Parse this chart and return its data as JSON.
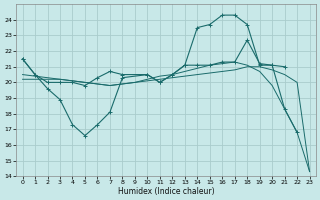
{
  "xlabel": "Humidex (Indice chaleur)",
  "bg_color": "#c8e8e8",
  "grid_color": "#aacccc",
  "line_color": "#1a6b6b",
  "xlim": [
    -0.5,
    23.5
  ],
  "ylim": [
    14,
    25
  ],
  "xticks": [
    0,
    1,
    2,
    3,
    4,
    5,
    6,
    7,
    8,
    9,
    10,
    11,
    12,
    13,
    14,
    15,
    16,
    17,
    18,
    19,
    20,
    21,
    22,
    23
  ],
  "yticks": [
    14,
    15,
    16,
    17,
    18,
    19,
    20,
    21,
    22,
    23,
    24
  ],
  "series": [
    {
      "x": [
        0,
        1,
        2,
        3,
        4,
        5,
        6,
        7,
        8,
        10,
        11,
        12,
        13,
        14,
        15,
        16,
        17,
        18,
        19,
        20,
        21,
        22
      ],
      "y": [
        21.5,
        20.5,
        19.6,
        18.9,
        17.3,
        16.6,
        17.3,
        18.1,
        20.3,
        20.5,
        20.0,
        20.5,
        21.1,
        23.5,
        23.7,
        24.3,
        24.3,
        23.7,
        21.1,
        21.1,
        18.3,
        16.8
      ],
      "marker": true
    },
    {
      "x": [
        0,
        1,
        2,
        3,
        4,
        5,
        6,
        7,
        8,
        10,
        11,
        12,
        13,
        14,
        15,
        16,
        17,
        18,
        19,
        20,
        21
      ],
      "y": [
        21.5,
        20.5,
        20.0,
        20.0,
        20.0,
        19.8,
        20.3,
        20.7,
        20.5,
        20.5,
        20.0,
        20.5,
        21.1,
        21.1,
        21.1,
        21.3,
        21.3,
        22.7,
        21.2,
        21.1,
        21.0
      ],
      "marker": true
    },
    {
      "x": [
        0,
        1,
        2,
        3,
        4,
        5,
        6,
        7,
        8,
        9,
        10,
        11,
        12,
        13,
        14,
        15,
        16,
        17,
        18,
        19,
        20,
        21,
        22,
        23
      ],
      "y": [
        20.2,
        20.2,
        20.2,
        20.2,
        20.1,
        20.0,
        19.9,
        19.8,
        19.9,
        20.0,
        20.1,
        20.2,
        20.3,
        20.4,
        20.5,
        20.6,
        20.7,
        20.8,
        21.0,
        21.0,
        20.8,
        20.5,
        20.0,
        14.3
      ],
      "marker": false
    },
    {
      "x": [
        0,
        1,
        2,
        3,
        4,
        5,
        6,
        7,
        8,
        9,
        10,
        11,
        12,
        13,
        14,
        15,
        16,
        17,
        18,
        19,
        20,
        21,
        22,
        23
      ],
      "y": [
        20.5,
        20.4,
        20.3,
        20.2,
        20.1,
        20.0,
        19.9,
        19.8,
        19.9,
        20.0,
        20.2,
        20.4,
        20.5,
        20.7,
        20.9,
        21.1,
        21.2,
        21.3,
        21.1,
        20.7,
        19.8,
        18.3,
        16.8,
        14.3
      ],
      "marker": false
    }
  ],
  "figsize": [
    3.2,
    2.0
  ],
  "dpi": 100
}
